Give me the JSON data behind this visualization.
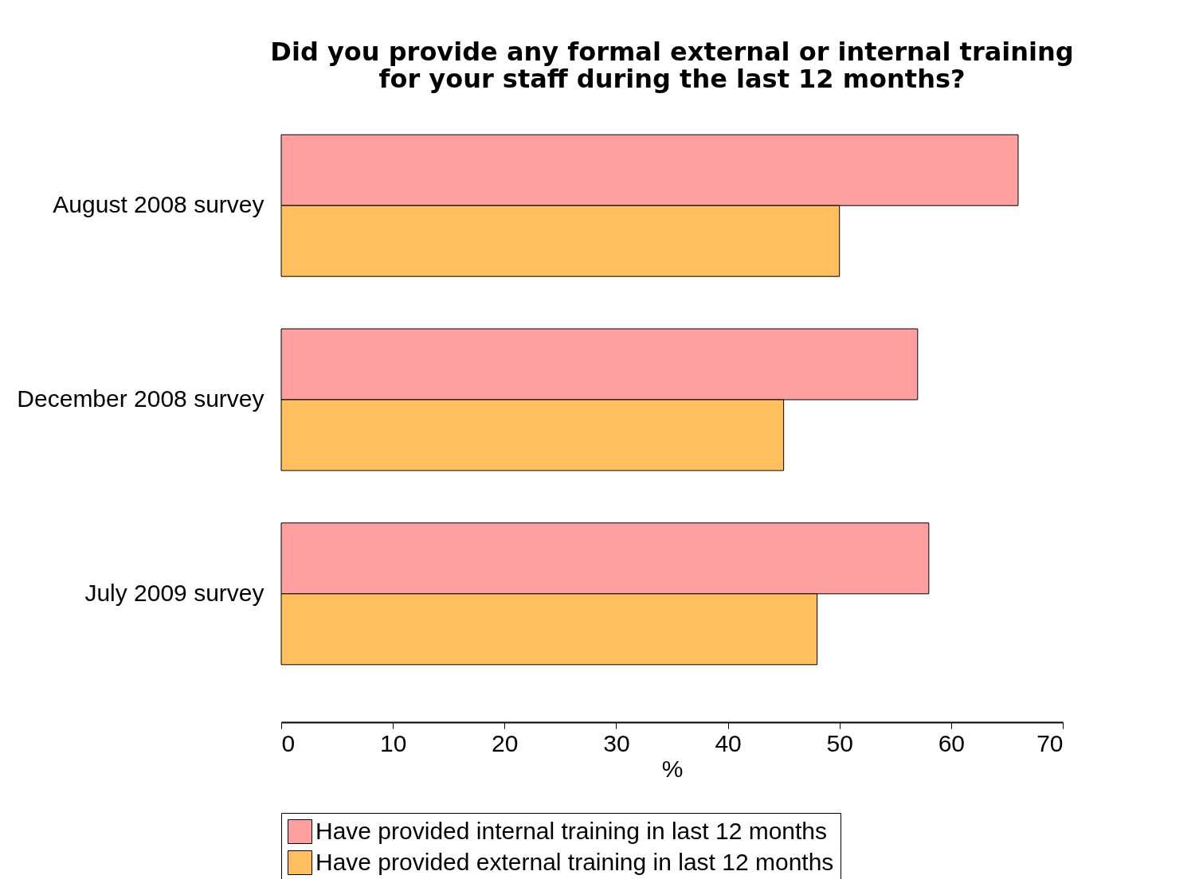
{
  "chart_data": {
    "type": "bar",
    "orientation": "horizontal",
    "title": "Did you provide any formal external or internal training for your staff during the last 12 months?",
    "xlabel": "%",
    "categories": [
      "August 2008 survey",
      "December 2008 survey",
      "July 2009 survey"
    ],
    "series": [
      {
        "name": "Have provided internal training in last 12 months",
        "color": "#ff9f9f",
        "values": [
          66,
          57,
          58
        ]
      },
      {
        "name": "Have provided external training in last 12 months",
        "color": "#ffbf5f",
        "values": [
          50,
          45,
          48
        ]
      }
    ],
    "xlim": [
      0,
      70
    ],
    "xticks": [
      0,
      10,
      20,
      30,
      40,
      50,
      60,
      70
    ],
    "grid": false,
    "legend": "bottom"
  }
}
